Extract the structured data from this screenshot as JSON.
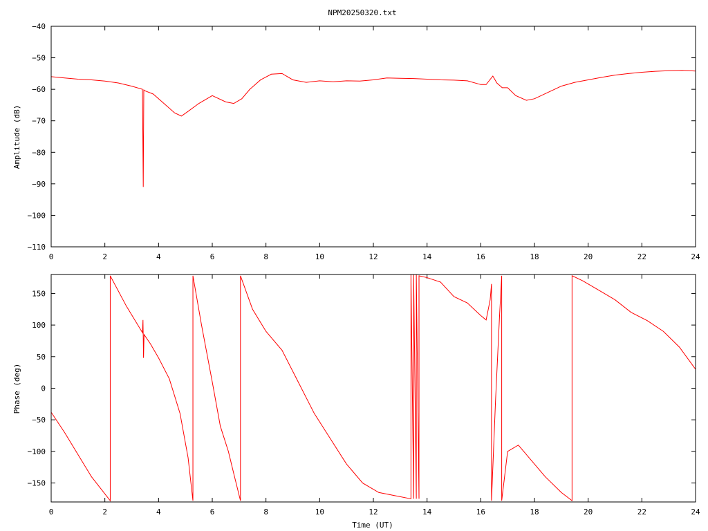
{
  "title": "NPM20250320.txt",
  "colors": {
    "series": "#ff0000",
    "axis": "#000000",
    "background": "#ffffff"
  },
  "chart_data": [
    {
      "type": "line",
      "name": "amplitude",
      "title": "NPM20250320.txt",
      "xlabel": "",
      "ylabel": "Amplitude (dB)",
      "xlim": [
        0,
        24
      ],
      "ylim": [
        -110,
        -40
      ],
      "xticks": [
        0,
        2,
        4,
        6,
        8,
        10,
        12,
        14,
        16,
        18,
        20,
        22,
        24
      ],
      "yticks": [
        -40,
        -50,
        -60,
        -70,
        -80,
        -90,
        -100,
        -110
      ],
      "grid": false,
      "series": [
        {
          "x": [
            0,
            0.5,
            1,
            1.5,
            2,
            2.5,
            3,
            3.4,
            3.43,
            3.45,
            3.5,
            3.8,
            4.2,
            4.6,
            4.85,
            5.1,
            5.5,
            6,
            6.5,
            6.8,
            7.1,
            7.4,
            7.8,
            8.2,
            8.6,
            9,
            9.5,
            10,
            10.5,
            11,
            11.5,
            12,
            12.5,
            13,
            13.5,
            14,
            14.5,
            15,
            15.5,
            16,
            16.2,
            16.45,
            16.6,
            16.8,
            17,
            17.3,
            17.7,
            18,
            18.5,
            19,
            19.5,
            20,
            20.5,
            21,
            21.5,
            22,
            22.5,
            23,
            23.5,
            24
          ],
          "y": [
            -56,
            -56.4,
            -56.8,
            -57,
            -57.4,
            -58,
            -59,
            -60,
            -91,
            -60.2,
            -60.5,
            -61.5,
            -64.5,
            -67.5,
            -68.5,
            -67,
            -64.5,
            -62,
            -64,
            -64.5,
            -63,
            -60,
            -57,
            -55.2,
            -55,
            -57,
            -57.8,
            -57.3,
            -57.6,
            -57.3,
            -57.4,
            -57,
            -56.4,
            -56.5,
            -56.6,
            -56.8,
            -57,
            -57.1,
            -57.3,
            -58.5,
            -58.5,
            -55.8,
            -58,
            -59.5,
            -59.5,
            -62,
            -63.5,
            -63,
            -61,
            -59,
            -57.8,
            -57,
            -56.2,
            -55.5,
            -55,
            -54.6,
            -54.3,
            -54.1,
            -54,
            -54.2
          ]
        }
      ]
    },
    {
      "type": "line",
      "name": "phase",
      "title": "",
      "xlabel": "Time (UT)",
      "ylabel": "Phase (deg)",
      "xlim": [
        0,
        24
      ],
      "ylim": [
        -180,
        180
      ],
      "xticks": [
        0,
        2,
        4,
        6,
        8,
        10,
        12,
        14,
        16,
        18,
        20,
        22,
        24
      ],
      "yticks": [
        150,
        100,
        50,
        0,
        -50,
        -100,
        -150
      ],
      "grid": false,
      "series": [
        {
          "x": [
            0,
            0.5,
            1,
            1.5,
            2.2,
            2.2,
            2.8,
            3.4,
            3.42,
            3.44,
            3.46,
            3.7,
            4,
            4.4,
            4.8,
            5.1,
            5.28,
            5.28,
            5.6,
            6,
            6.3,
            6.6,
            6.8,
            7.05,
            7.05,
            7.5,
            8,
            8.6,
            9.2,
            9.8,
            10.4,
            11,
            11.6,
            12.2,
            12.8,
            13.4,
            13.4,
            13.5,
            13.5,
            13.6,
            13.6,
            13.7,
            13.7,
            14,
            14.5,
            15,
            15.5,
            16,
            16.2,
            16.35,
            16.4,
            16.4,
            16.55,
            16.7,
            16.78,
            16.78,
            17,
            17.4,
            17.8,
            18.4,
            19,
            19.4,
            19.4,
            19.8,
            20.4,
            21,
            21.6,
            22.2,
            22.8,
            23.4,
            24
          ],
          "y": [
            -38,
            -70,
            -105,
            -140,
            -178,
            178,
            130,
            88,
            108,
            48,
            85,
            70,
            48,
            15,
            -40,
            -110,
            -178,
            178,
            100,
            10,
            -60,
            -100,
            -135,
            -178,
            178,
            125,
            90,
            60,
            10,
            -40,
            -80,
            -120,
            -150,
            -165,
            -170,
            -175,
            180,
            -175,
            180,
            -175,
            180,
            -175,
            178,
            175,
            168,
            145,
            135,
            115,
            108,
            140,
            165,
            -178,
            -20,
            115,
            178,
            -178,
            -100,
            -90,
            -110,
            -140,
            -165,
            -178,
            178,
            170,
            155,
            140,
            120,
            107,
            90,
            65,
            30
          ]
        }
      ]
    }
  ]
}
